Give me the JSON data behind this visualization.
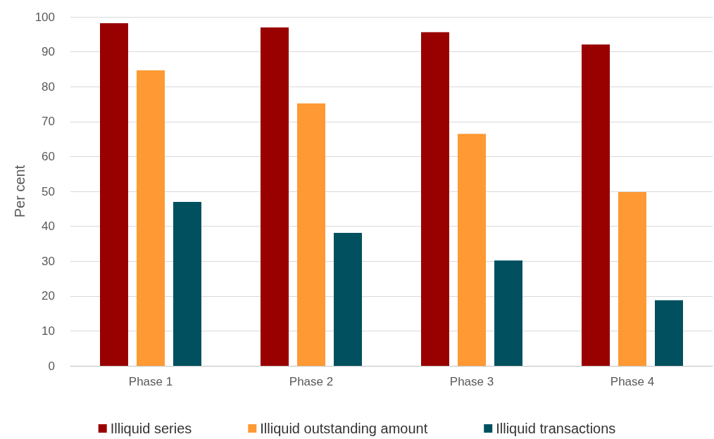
{
  "chart_data": {
    "type": "bar",
    "ylabel": "Per cent",
    "categories": [
      "Phase 1",
      "Phase 2",
      "Phase 3",
      "Phase 4"
    ],
    "series": [
      {
        "name": "Illiquid series",
        "color": "#990000",
        "values": [
          98.2,
          97.0,
          95.6,
          92.1
        ]
      },
      {
        "name": "Illiquid outstanding amount",
        "color": "#ff9933",
        "values": [
          84.7,
          75.2,
          66.5,
          49.8
        ]
      },
      {
        "name": "Illiquid transactions",
        "color": "#005060",
        "values": [
          47.0,
          38.1,
          30.2,
          18.8
        ]
      }
    ],
    "ylim": [
      0,
      100
    ],
    "yticks": [
      0,
      10,
      20,
      30,
      40,
      50,
      60,
      70,
      80,
      90,
      100
    ],
    "grid": "y",
    "legend": "bottom"
  }
}
